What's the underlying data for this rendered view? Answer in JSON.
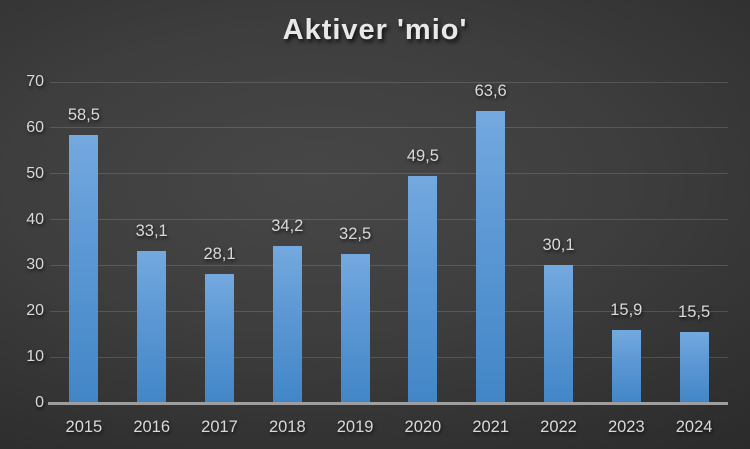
{
  "chart_data": {
    "type": "bar",
    "title": "Aktiver 'mio'",
    "categories": [
      "2015",
      "2016",
      "2017",
      "2018",
      "2019",
      "2020",
      "2021",
      "2022",
      "2023",
      "2024"
    ],
    "values": [
      58.5,
      33.1,
      28.1,
      34.2,
      32.5,
      49.5,
      63.6,
      30.1,
      15.9,
      15.5
    ],
    "value_labels": [
      "58,5",
      "33,1",
      "28,1",
      "34,2",
      "32,5",
      "49,5",
      "63,6",
      "30,1",
      "15,9",
      "15,5"
    ],
    "xlabel": "",
    "ylabel": "",
    "ylim": [
      0,
      70
    ],
    "ytick_step": 10,
    "ytick_labels": [
      "0",
      "10",
      "20",
      "30",
      "40",
      "50",
      "60",
      "70"
    ],
    "grid": true,
    "legend": "none",
    "colors": {
      "bar_top": "#74a9df",
      "bar_bottom": "#4286c7",
      "label_text": "#d9d9d9",
      "title_text": "#e8e8e8",
      "axis_line": "#9e9e9e",
      "background_center": "#474747",
      "background_edge": "#242424"
    }
  }
}
